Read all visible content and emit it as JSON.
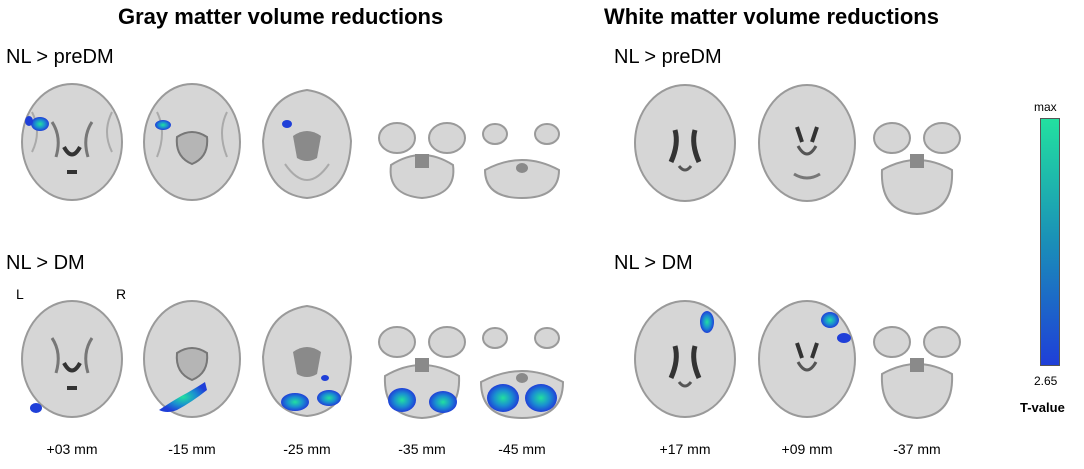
{
  "panels": {
    "gray": {
      "title": "Gray matter volume reductions"
    },
    "white": {
      "title": "White matter volume reductions"
    }
  },
  "rows": {
    "top": "NL > preDM",
    "bottom": "NL > DM"
  },
  "orientation": {
    "left": "L",
    "right": "R"
  },
  "gray_slices_mm": [
    "+03 mm",
    "-15 mm",
    "-25 mm",
    "-35 mm",
    "-45 mm"
  ],
  "white_slices_mm": [
    "+17 mm",
    "+09 mm",
    "-37 mm"
  ],
  "colorbar": {
    "max_label": "max",
    "min_label": "2.65",
    "title": "T-value",
    "color_low": "#1f3fd8",
    "color_high": "#22e0a0"
  },
  "colors": {
    "brain_gray": "#d4d4d4",
    "brain_dark": "#6a6a6a",
    "brain_outline": "#9a9a9a"
  }
}
